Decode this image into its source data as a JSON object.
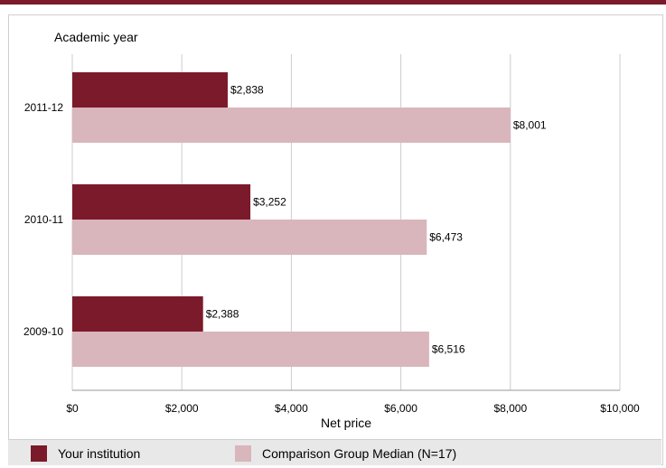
{
  "chart_data": {
    "type": "bar",
    "orientation": "horizontal",
    "categories": [
      "2011-12",
      "2010-11",
      "2009-10"
    ],
    "series": [
      {
        "name": "Your institution",
        "values": [
          2838,
          3252,
          2388
        ],
        "labels": [
          "$2,838",
          "$3,252",
          "$2,388"
        ],
        "color": "#7b1a2a"
      },
      {
        "name": "Comparison Group Median (N=17)",
        "values": [
          8001,
          6473,
          6516
        ],
        "labels": [
          "$8,001",
          "$6,473",
          "$6,516"
        ],
        "color": "#d9b5bc"
      }
    ],
    "ylabel": "Academic year",
    "xlabel": "Net price",
    "xlim": [
      0,
      10000
    ],
    "x_ticks": [
      0,
      2000,
      4000,
      6000,
      8000,
      10000
    ],
    "x_tick_labels": [
      "$0",
      "$2,000",
      "$4,000",
      "$6,000",
      "$8,000",
      "$10,000"
    ],
    "grid": true,
    "legend_position": "bottom"
  },
  "colors": {
    "brand": "#7b1a2a",
    "comparison": "#d9b5bc",
    "grid": "#cccccc",
    "legend_background": "#e8e8e8"
  }
}
